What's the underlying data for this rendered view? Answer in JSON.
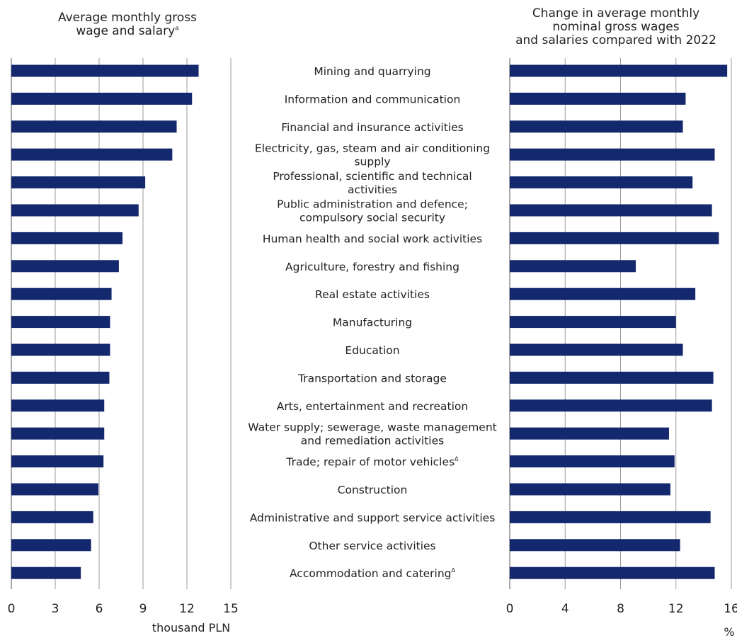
{
  "chart_data": [
    {
      "type": "bar",
      "orientation": "horizontal",
      "title_lines": [
        "Average monthly gross",
        "wage and salary"
      ],
      "title_superscript": "a",
      "xlabel": "thousand PLN",
      "xlim": [
        0,
        15
      ],
      "xticks": [
        "0",
        "3",
        "6",
        "9",
        "12",
        "15"
      ],
      "grid": true,
      "color": "#14286e",
      "values": [
        12.8,
        12.35,
        11.3,
        11.0,
        9.15,
        8.7,
        7.6,
        7.35,
        6.85,
        6.75,
        6.75,
        6.7,
        6.35,
        6.35,
        6.3,
        5.95,
        5.6,
        5.45,
        4.75
      ]
    },
    {
      "type": "bar",
      "orientation": "horizontal",
      "title_lines": [
        "Change in average monthly",
        "nominal gross wages",
        "and salaries compared with 2022"
      ],
      "xlabel": "%",
      "xlim": [
        0,
        16
      ],
      "xticks": [
        "0",
        "4",
        "8",
        "12",
        "16"
      ],
      "grid": true,
      "color": "#14286e",
      "values": [
        15.7,
        12.7,
        12.5,
        14.8,
        13.2,
        14.6,
        15.1,
        9.1,
        13.4,
        12.0,
        12.5,
        14.7,
        14.6,
        11.5,
        11.9,
        11.6,
        14.5,
        12.3,
        14.8
      ]
    }
  ],
  "categories": [
    {
      "lines": [
        "Mining and quarrying"
      ]
    },
    {
      "lines": [
        "Information and communication"
      ]
    },
    {
      "lines": [
        "Financial and insurance activities"
      ]
    },
    {
      "lines": [
        "Electricity, gas, steam and air conditioning",
        "supply"
      ]
    },
    {
      "lines": [
        "Professional, scientific and technical",
        "activities"
      ]
    },
    {
      "lines": [
        "Public administration and defence;",
        "compulsory social security"
      ]
    },
    {
      "lines": [
        "Human health and social work  activities"
      ]
    },
    {
      "lines": [
        "Agriculture, forestry and fishing"
      ]
    },
    {
      "lines": [
        "Real estate activities"
      ]
    },
    {
      "lines": [
        "Manufacturing"
      ]
    },
    {
      "lines": [
        "Education"
      ]
    },
    {
      "lines": [
        "Transportation and storage"
      ]
    },
    {
      "lines": [
        "Arts, entertainment and recreation"
      ]
    },
    {
      "lines": [
        "Water supply; sewerage, waste management",
        "and remediation activities"
      ]
    },
    {
      "lines": [
        "Trade; repair of motor vehicles"
      ],
      "sup": "Δ"
    },
    {
      "lines": [
        "Construction"
      ]
    },
    {
      "lines": [
        "Administrative and support service activities"
      ]
    },
    {
      "lines": [
        "Other service activities"
      ]
    },
    {
      "lines": [
        "Accommodation and catering"
      ],
      "sup": "Δ"
    }
  ]
}
